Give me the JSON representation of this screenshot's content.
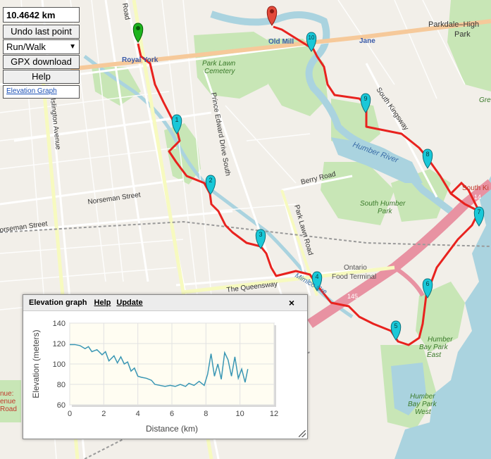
{
  "controls": {
    "distance": "10.4642 km",
    "undo_label": "Undo last point",
    "mode_selected": "Run/Walk",
    "gpx_label": "GPX download",
    "help_label": "Help",
    "elevation_link": "Elevation Graph"
  },
  "map_labels": {
    "royal_york": "Royal York",
    "old_mill": "Old Mill",
    "jane": "Jane",
    "parkdale_high_park_1": "Parkdale–High",
    "parkdale_high_park_2": "Park",
    "park_lawn_cemetery_1": "Park Lawn",
    "park_lawn_cemetery_2": "Cemetery",
    "islington_avenue": "Islington Avenue",
    "norseman_street": "Norseman Street",
    "norseman_street_2": "orseman Street",
    "prince_edward_drive": "Prince Edward Drive South",
    "berry_road": "Berry Road",
    "park_lawn_road": "Park Lawn Road",
    "south_kingsway": "South Kingsway",
    "humber_river": "Humber River",
    "south_humber_park_1": "South Humber",
    "south_humber_park_2": "Park",
    "ontario_food_terminal_1": "Ontario",
    "ontario_food_terminal_2": "Food Terminal",
    "the_queensway": "The Queensway",
    "mimico_creek": "Mimico Cre",
    "humber_bay_park_east_1": "Humber",
    "humber_bay_park_east_2": "Bay Park",
    "humber_bay_park_east_3": "East",
    "humber_bay_park_west_1": "Humber",
    "humber_bay_park_west_2": "Bay Park",
    "humber_bay_park_west_3": "West",
    "south_kingsway_cut": "South Ki",
    "hwy_145": "145",
    "hwy_14": "14",
    "royal_york_road_top": "Road",
    "avenue_cut_1": "nue:",
    "avenue_cut_2": "enue",
    "road_cut": "Road",
    "gre_cut": "Gre"
  },
  "markers": {
    "start_color": "#1db41d",
    "end_color": "#e34a3a",
    "waypoint_color": "#19c8d8",
    "route_color": "#e8221e",
    "waypoints": [
      "1",
      "2",
      "3",
      "4",
      "5",
      "6",
      "7",
      "8",
      "9",
      "10"
    ]
  },
  "elevation": {
    "title": "Elevation graph",
    "help_label": "Help",
    "update_label": "Update",
    "close_icon": "×",
    "chart_data": {
      "type": "line",
      "xlabel": "Distance (km)",
      "ylabel": "Elevation (meters)",
      "xlim": [
        0,
        12
      ],
      "ylim": [
        60,
        140
      ],
      "xticks": [
        0,
        2,
        4,
        6,
        8,
        10,
        12
      ],
      "yticks": [
        60,
        80,
        100,
        120,
        140
      ],
      "series": [
        {
          "color": "#3a97b4",
          "x": [
            0,
            0.3,
            0.6,
            0.9,
            1.1,
            1.3,
            1.6,
            1.9,
            2.1,
            2.3,
            2.6,
            2.8,
            3.0,
            3.2,
            3.4,
            3.6,
            3.8,
            4.0,
            4.2,
            4.5,
            4.8,
            5.0,
            5.3,
            5.6,
            5.9,
            6.2,
            6.5,
            6.8,
            7.0,
            7.3,
            7.6,
            7.9,
            8.1,
            8.3,
            8.5,
            8.7,
            8.9,
            9.1,
            9.3,
            9.5,
            9.7,
            9.9,
            10.1,
            10.3,
            10.46
          ],
          "y": [
            119,
            119,
            118,
            115,
            117,
            112,
            114,
            109,
            112,
            103,
            108,
            101,
            107,
            100,
            102,
            93,
            96,
            88,
            87,
            86,
            84,
            80,
            79,
            78,
            79,
            78,
            80,
            78,
            81,
            79,
            83,
            79,
            90,
            110,
            88,
            100,
            85,
            111,
            104,
            88,
            107,
            86,
            95,
            82,
            95
          ]
        }
      ]
    }
  }
}
